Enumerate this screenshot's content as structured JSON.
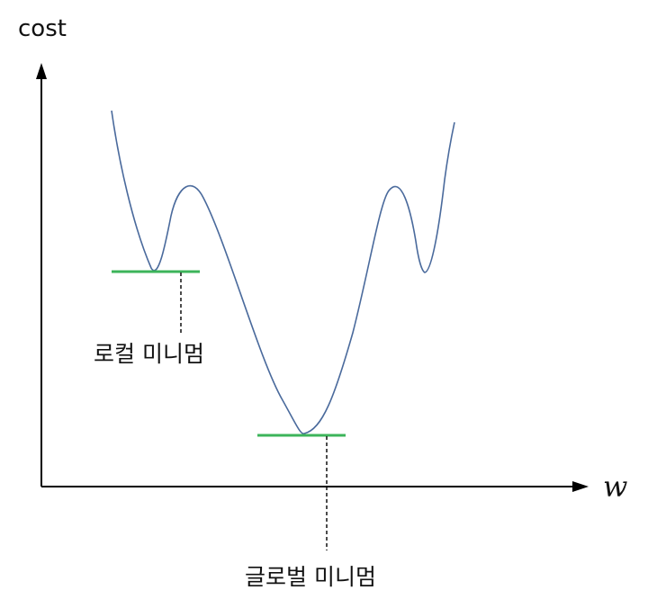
{
  "diagram": {
    "y_axis_label": "cost",
    "x_axis_label": "w",
    "local_minimum_label": "로컬 미니멈",
    "global_minimum_label": "글로벌 미니멈"
  },
  "colors": {
    "axis": "#000000",
    "curve": "#4a6a9c",
    "minimum_marker": "#3cb45a",
    "guide_line": "#000000"
  }
}
